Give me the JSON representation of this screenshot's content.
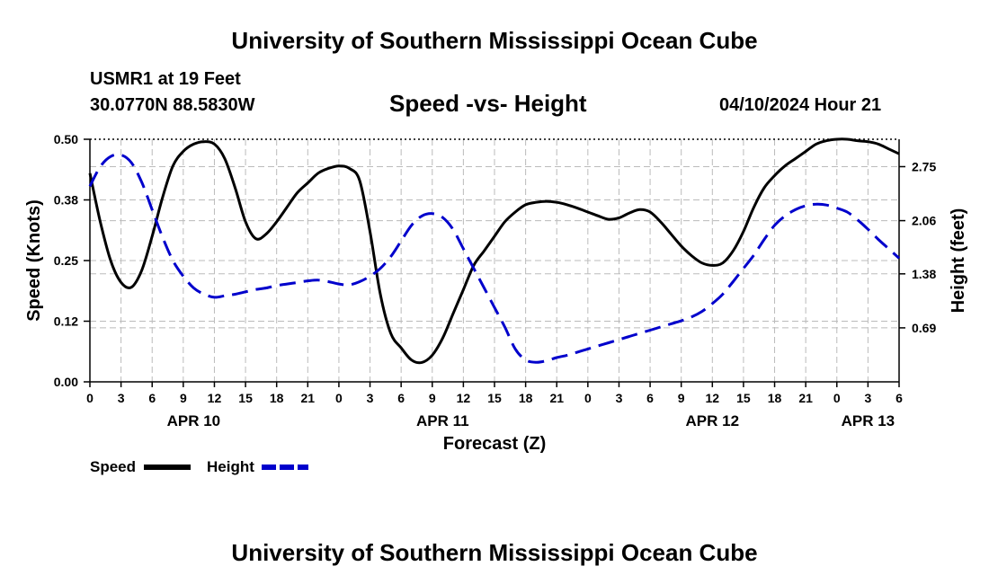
{
  "page": {
    "title": "University of Southern Mississippi Ocean Cube",
    "footer_title": "University of Southern Mississippi Ocean Cube",
    "station": "USMR1 at 19 Feet",
    "location": "30.0770N  88.5830W",
    "subtitle": "Speed -vs- Height",
    "datetime": "04/10/2024 Hour 21"
  },
  "legend": {
    "speed_label": "Speed",
    "height_label": "Height"
  },
  "chart_data": {
    "type": "line",
    "title": "Speed -vs- Height",
    "xlabel": "Forecast (Z)",
    "ylabel": "Speed (Knots)",
    "y2label": "Height (feet)",
    "x_range_hours": [
      0,
      78
    ],
    "ylim": [
      0,
      0.5
    ],
    "y2lim": [
      0,
      3.1
    ],
    "yticks": [
      "0.00",
      "0.12",
      "0.25",
      "0.38",
      "0.50"
    ],
    "yticks_values": [
      0,
      0.125,
      0.25,
      0.375,
      0.5
    ],
    "y2ticks": [
      "0.69",
      "1.38",
      "2.06",
      "2.75"
    ],
    "y2ticks_values": [
      0.69,
      1.38,
      2.06,
      2.75
    ],
    "xticks": [
      "0",
      "3",
      "6",
      "9",
      "12",
      "15",
      "18",
      "21",
      "0",
      "3",
      "6",
      "9",
      "12",
      "15",
      "18",
      "21",
      "0",
      "3",
      "6",
      "9",
      "12",
      "15",
      "18",
      "21",
      "0",
      "3",
      "6"
    ],
    "day_labels": [
      {
        "label": "APR 10",
        "hour": 10
      },
      {
        "label": "APR 11",
        "hour": 34
      },
      {
        "label": "APR 12",
        "hour": 60
      },
      {
        "label": "APR 13",
        "hour": 75
      }
    ],
    "series": [
      {
        "name": "Speed",
        "axis": "left",
        "color": "#000000",
        "style": "solid",
        "x": [
          0,
          1,
          2,
          3,
          4,
          5,
          6,
          7,
          8,
          9,
          10,
          11,
          12,
          13,
          14,
          15,
          16,
          17,
          18,
          19,
          20,
          21,
          22,
          23,
          24,
          25,
          26,
          27,
          28,
          29,
          30,
          31,
          32,
          33,
          34,
          35,
          36,
          37,
          38,
          39,
          40,
          41,
          42,
          43,
          44,
          45,
          46,
          47,
          48,
          49,
          50,
          51,
          52,
          53,
          54,
          55,
          56,
          57,
          58,
          59,
          60,
          61,
          62,
          63,
          64,
          65,
          66,
          67,
          68,
          69,
          70,
          71,
          72,
          73,
          74,
          75,
          76,
          77,
          78
        ],
        "values": [
          0.43,
          0.33,
          0.25,
          0.205,
          0.195,
          0.23,
          0.3,
          0.38,
          0.445,
          0.475,
          0.49,
          0.495,
          0.49,
          0.46,
          0.4,
          0.33,
          0.295,
          0.305,
          0.33,
          0.36,
          0.39,
          0.41,
          0.43,
          0.44,
          0.445,
          0.44,
          0.415,
          0.31,
          0.18,
          0.1,
          0.07,
          0.045,
          0.04,
          0.055,
          0.09,
          0.14,
          0.19,
          0.24,
          0.27,
          0.3,
          0.33,
          0.35,
          0.365,
          0.37,
          0.372,
          0.37,
          0.365,
          0.358,
          0.35,
          0.342,
          0.335,
          0.338,
          0.348,
          0.355,
          0.35,
          0.33,
          0.305,
          0.28,
          0.26,
          0.245,
          0.24,
          0.245,
          0.27,
          0.31,
          0.36,
          0.4,
          0.425,
          0.445,
          0.46,
          0.475,
          0.49,
          0.497,
          0.5,
          0.5,
          0.497,
          0.495,
          0.49,
          0.48,
          0.47
        ]
      },
      {
        "name": "Height",
        "axis": "right",
        "color": "#0000cc",
        "style": "dashed",
        "x": [
          0,
          1,
          2,
          3,
          4,
          5,
          6,
          7,
          8,
          9,
          10,
          11,
          12,
          13,
          14,
          15,
          16,
          17,
          18,
          19,
          20,
          21,
          22,
          23,
          24,
          25,
          26,
          27,
          28,
          29,
          30,
          31,
          32,
          33,
          34,
          35,
          36,
          37,
          38,
          39,
          40,
          41,
          42,
          43,
          44,
          45,
          46,
          47,
          48,
          49,
          50,
          51,
          52,
          53,
          54,
          55,
          56,
          57,
          58,
          59,
          60,
          61,
          62,
          63,
          64,
          65,
          66,
          67,
          68,
          69,
          70,
          71,
          72,
          73,
          74,
          75,
          76,
          77,
          78
        ],
        "values": [
          2.5,
          2.75,
          2.88,
          2.9,
          2.8,
          2.55,
          2.2,
          1.85,
          1.55,
          1.35,
          1.2,
          1.12,
          1.08,
          1.1,
          1.12,
          1.15,
          1.18,
          1.2,
          1.23,
          1.25,
          1.27,
          1.29,
          1.3,
          1.28,
          1.25,
          1.24,
          1.28,
          1.35,
          1.45,
          1.6,
          1.8,
          2.0,
          2.12,
          2.15,
          2.1,
          1.95,
          1.7,
          1.45,
          1.2,
          0.95,
          0.7,
          0.42,
          0.28,
          0.25,
          0.27,
          0.31,
          0.34,
          0.38,
          0.42,
          0.46,
          0.5,
          0.54,
          0.58,
          0.62,
          0.66,
          0.7,
          0.74,
          0.78,
          0.83,
          0.9,
          1.0,
          1.12,
          1.28,
          1.45,
          1.62,
          1.82,
          2.0,
          2.12,
          2.2,
          2.25,
          2.27,
          2.26,
          2.22,
          2.17,
          2.07,
          1.95,
          1.82,
          1.7,
          1.58
        ]
      }
    ]
  }
}
